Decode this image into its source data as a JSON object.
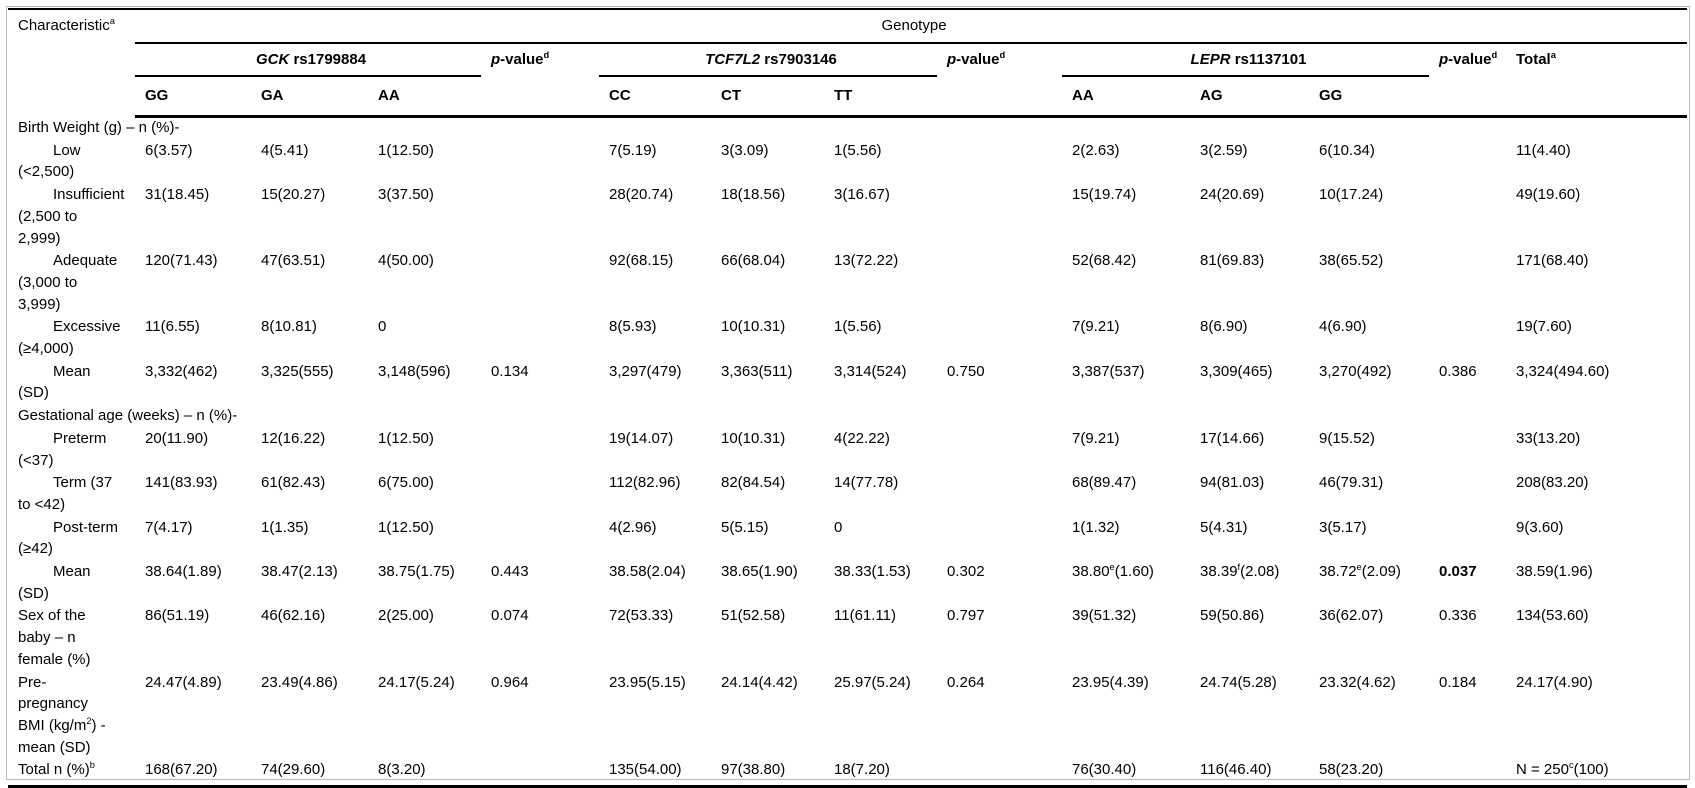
{
  "table": {
    "header": {
      "characteristic": "Characteristic",
      "characteristic_sup": "a",
      "genotype": "Genotype",
      "p": {
        "italic": "p",
        "rest": "-value",
        "sup": "d"
      },
      "total": "Total",
      "total_sup": "a",
      "groups": [
        {
          "gene": "GCK",
          "rs": " rs1799884",
          "alleles": [
            "GG",
            "GA",
            "AA"
          ]
        },
        {
          "gene": "TCF7L2",
          "rs": " rs7903146",
          "alleles": [
            "CC",
            "CT",
            "TT"
          ]
        },
        {
          "gene": "LEPR",
          "rs": " rs1137101",
          "alleles": [
            "AA",
            "AG",
            "GG"
          ]
        }
      ]
    },
    "rows": [
      {
        "label": "Birth Weight (g) – n (%)-",
        "section": true,
        "indent": false,
        "cells": [
          "",
          "",
          "",
          "",
          "",
          "",
          "",
          "",
          "",
          "",
          "",
          "",
          ""
        ]
      },
      {
        "label": "Low\n(<2,500)",
        "section": false,
        "indent": true,
        "cells": [
          "6(3.57)",
          "4(5.41)",
          "1(12.50)",
          "",
          "7(5.19)",
          "3(3.09)",
          "1(5.56)",
          "",
          "2(2.63)",
          "3(2.59)",
          "6(10.34)",
          "",
          "11(4.40)"
        ]
      },
      {
        "label": "Insufficient\n(2,500 to\n2,999)",
        "section": false,
        "indent": true,
        "cells": [
          "31(18.45)",
          "15(20.27)",
          "3(37.50)",
          "",
          "28(20.74)",
          "18(18.56)",
          "3(16.67)",
          "",
          "15(19.74)",
          "24(20.69)",
          "10(17.24)",
          "",
          "49(19.60)"
        ]
      },
      {
        "label": "Adequate\n(3,000 to\n3,999)",
        "section": false,
        "indent": true,
        "cells": [
          "120(71.43)",
          "47(63.51)",
          "4(50.00)",
          "",
          "92(68.15)",
          "66(68.04)",
          "13(72.22)",
          "",
          "52(68.42)",
          "81(69.83)",
          "38(65.52)",
          "",
          "171(68.40)"
        ]
      },
      {
        "label": "Excessive\n(≥4,000)",
        "section": false,
        "indent": true,
        "cells": [
          "11(6.55)",
          "8(10.81)",
          "0",
          "",
          "8(5.93)",
          "10(10.31)",
          "1(5.56)",
          "",
          "7(9.21)",
          "8(6.90)",
          "4(6.90)",
          "",
          "19(7.60)"
        ]
      },
      {
        "label": "Mean\n(SD)",
        "section": false,
        "indent": true,
        "cells": [
          "3,332(462)",
          "3,325(555)",
          "3,148(596)",
          "0.134",
          "3,297(479)",
          "3,363(511)",
          "3,314(524)",
          "0.750",
          "3,387(537)",
          "3,309(465)",
          "3,270(492)",
          "0.386",
          "3,324(494.60)"
        ]
      },
      {
        "label": "Gestational age (weeks) – n (%)-",
        "section": true,
        "indent": false,
        "cells": [
          "",
          "",
          "",
          "",
          "",
          "",
          "",
          "",
          "",
          "",
          "",
          "",
          ""
        ]
      },
      {
        "label": "Preterm\n(<37)",
        "section": false,
        "indent": true,
        "cells": [
          "20(11.90)",
          "12(16.22)",
          "1(12.50)",
          "",
          "19(14.07)",
          "10(10.31)",
          "4(22.22)",
          "",
          "7(9.21)",
          "17(14.66)",
          "9(15.52)",
          "",
          "33(13.20)"
        ]
      },
      {
        "label": "Term (37\nto <42)",
        "section": false,
        "indent": true,
        "cells": [
          "141(83.93)",
          "61(82.43)",
          "6(75.00)",
          "",
          "112(82.96)",
          "82(84.54)",
          "14(77.78)",
          "",
          "68(89.47)",
          "94(81.03)",
          "46(79.31)",
          "",
          "208(83.20)"
        ]
      },
      {
        "label": "Post-term\n(≥42)",
        "section": false,
        "indent": true,
        "cells": [
          "7(4.17)",
          "1(1.35)",
          "1(12.50)",
          "",
          "4(2.96)",
          "5(5.15)",
          "0",
          "",
          "1(1.32)",
          "5(4.31)",
          "3(5.17)",
          "",
          "9(3.60)"
        ]
      },
      {
        "label": "Mean\n(SD)",
        "section": false,
        "indent": true,
        "cells": [
          "38.64(1.89)",
          "38.47(2.13)",
          "38.75(1.75)",
          "0.443",
          "38.58(2.04)",
          "38.65(1.90)",
          "38.33(1.53)",
          "0.302",
          "38.80{e}(1.60)",
          "38.39{f}(2.08)",
          "38.72{e}(2.09)",
          "*0.037*",
          "38.59(1.96)"
        ]
      },
      {
        "label": "Sex of the\nbaby – n\nfemale (%)",
        "section": false,
        "indent": false,
        "cells": [
          "86(51.19)",
          "46(62.16)",
          "2(25.00)",
          "0.074",
          "72(53.33)",
          "51(52.58)",
          "11(61.11)",
          "0.797",
          "39(51.32)",
          "59(50.86)",
          "36(62.07)",
          "0.336",
          "134(53.60)"
        ]
      },
      {
        "label": "Pre-\npregnancy\nBMI (kg/m{2}) -\nmean (SD)",
        "section": false,
        "indent": false,
        "cells": [
          "24.47(4.89)",
          "23.49(4.86)",
          "24.17(5.24)",
          "0.964",
          "23.95(5.15)",
          "24.14(4.42)",
          "25.97(5.24)",
          "0.264",
          "23.95(4.39)",
          "24.74(5.28)",
          "23.32(4.62)",
          "0.184",
          "24.17(4.90)"
        ]
      },
      {
        "label": "Total n (%){b}",
        "section": false,
        "indent": false,
        "cells": [
          "168(67.20)",
          "74(29.60)",
          "8(3.20)",
          "",
          "135(54.00)",
          "97(38.80)",
          "18(7.20)",
          "",
          "76(30.40)",
          "116(46.40)",
          "58(23.20)",
          "",
          "N = 250{c}(100)"
        ]
      }
    ]
  },
  "colors": {
    "rule": "#000000",
    "frame": "#b9b9b9",
    "text": "#000000",
    "background": "#ffffff"
  }
}
